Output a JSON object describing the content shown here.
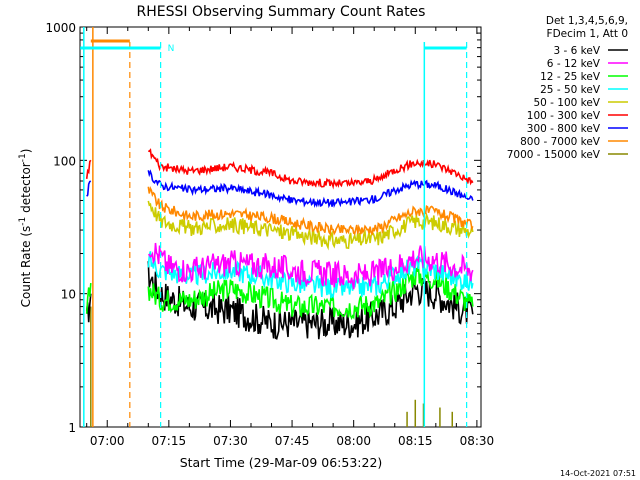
{
  "chart_data": {
    "type": "line",
    "title": "RHESSI Observing Summary Count Rates",
    "xlabel": "Start Time (29-Mar-09 06:53:22)",
    "ylabel": "Count Rate (s^-1 detector^-1)",
    "ylabel_parts": {
      "a": "Count Rate (s",
      "b": "-1",
      "c": " detector",
      "d": "-1",
      "e": ")"
    },
    "y_scale": "log",
    "ylim": [
      1,
      1000
    ],
    "y_ticks": [
      {
        "value": 1,
        "label": "1"
      },
      {
        "value": 10,
        "label": "10"
      },
      {
        "value": 100,
        "label": "100"
      },
      {
        "value": 1000,
        "label": "1000"
      }
    ],
    "xlim": [
      "06:53:22",
      "08:31:00"
    ],
    "x_ticks": [
      "07:00",
      "07:15",
      "07:30",
      "07:45",
      "08:00",
      "08:15",
      "08:30"
    ],
    "x_tick_minutes": [
      420,
      435,
      450,
      465,
      480,
      495,
      510
    ],
    "x_min_minutes": 413.37,
    "x_max_minutes": 511,
    "legend_position": "top-right",
    "legend_header": [
      "Det 1,3,4,5,6,9,",
      "FDecim 1, Att 0"
    ],
    "series": [
      {
        "name": "3 - 6 keV",
        "color": "#000000",
        "x": [
          "06:55",
          "06:56",
          "07:10",
          "07:13",
          "07:20",
          "07:30",
          "07:40",
          "07:45",
          "07:55",
          "08:00",
          "08:06",
          "08:10",
          "08:15",
          "08:20",
          "08:25",
          "08:29"
        ],
        "values": [
          6,
          10,
          14,
          10,
          8,
          7.5,
          6,
          6,
          6,
          6,
          7,
          8,
          11,
          10,
          8,
          7
        ]
      },
      {
        "name": "6 - 12 keV",
        "color": "#ff00ff",
        "x": [
          "07:10",
          "07:15",
          "07:20",
          "07:30",
          "07:40",
          "07:45",
          "07:55",
          "08:00",
          "08:05",
          "08:10",
          "08:15",
          "08:20",
          "08:25",
          "08:29"
        ],
        "values": [
          24,
          16,
          15,
          17,
          16,
          15,
          14,
          13.5,
          14,
          16,
          19,
          18,
          16,
          15
        ]
      },
      {
        "name": "12 - 25 keV",
        "color": "#00ff00",
        "x": [
          "06:55",
          "06:56",
          "07:10",
          "07:13",
          "07:20",
          "07:30",
          "07:40",
          "07:45",
          "07:55",
          "08:00",
          "08:06",
          "08:10",
          "08:15",
          "08:20",
          "08:25",
          "08:29"
        ],
        "values": [
          7,
          12,
          11,
          9,
          9,
          11,
          9,
          8,
          8,
          8,
          8.5,
          10.5,
          14,
          13,
          10,
          8
        ]
      },
      {
        "name": "25 - 50 keV",
        "color": "#00ffff",
        "x": [
          "07:10",
          "07:13",
          "07:20",
          "07:30",
          "07:40",
          "07:45",
          "07:55",
          "08:00",
          "08:06",
          "08:10",
          "08:15",
          "08:20",
          "08:25",
          "08:29"
        ],
        "values": [
          18,
          15,
          13.5,
          15,
          13,
          12,
          11,
          11,
          11.5,
          14,
          16,
          15,
          13,
          12
        ]
      },
      {
        "name": "50 - 100 keV",
        "color": "#cccc00",
        "x": [
          "07:10",
          "07:13",
          "07:20",
          "07:30",
          "07:40",
          "07:45",
          "07:55",
          "08:00",
          "08:06",
          "08:10",
          "08:15",
          "08:20",
          "08:25",
          "08:29"
        ],
        "values": [
          50,
          35,
          31,
          33,
          30,
          28,
          25,
          25,
          26,
          30,
          35,
          34,
          31,
          29
        ]
      },
      {
        "name": "100 - 300 keV",
        "color": "#ff0000",
        "x": [
          "06:55",
          "06:56",
          "07:10",
          "07:13",
          "07:20",
          "07:30",
          "07:40",
          "07:45",
          "07:55",
          "08:00",
          "08:06",
          "08:10",
          "08:15",
          "08:20",
          "08:25",
          "08:29"
        ],
        "values": [
          75,
          100,
          120,
          90,
          83,
          90,
          80,
          70,
          67,
          67,
          72,
          85,
          96,
          93,
          80,
          68
        ]
      },
      {
        "name": "300 - 800 keV",
        "color": "#0000ff",
        "x": [
          "06:55",
          "06:56",
          "07:10",
          "07:13",
          "07:20",
          "07:30",
          "07:40",
          "07:45",
          "07:55",
          "08:00",
          "08:06",
          "08:10",
          "08:15",
          "08:20",
          "08:25",
          "08:29"
        ],
        "values": [
          55,
          70,
          80,
          65,
          60,
          62,
          55,
          50,
          48,
          49,
          52,
          60,
          67,
          65,
          57,
          50
        ]
      },
      {
        "name": "800 - 7000 keV",
        "color": "#ff8800",
        "x": [
          "07:10",
          "07:13",
          "07:20",
          "07:30",
          "07:40",
          "07:45",
          "07:55",
          "08:00",
          "08:06",
          "08:10",
          "08:15",
          "08:20",
          "08:25",
          "08:29"
        ],
        "values": [
          60,
          45,
          38,
          40,
          37,
          34,
          30,
          30,
          31,
          36,
          42,
          41,
          36,
          32
        ]
      },
      {
        "name": "7000 - 15000 keV",
        "color": "#888800",
        "x": [
          "06:56",
          "08:13",
          "08:15",
          "08:17",
          "08:21",
          "08:24"
        ],
        "values": [
          8,
          1.3,
          1.6,
          1.5,
          1.4,
          1.3
        ]
      }
    ],
    "flag_label": "N",
    "date_stamp": "14-Oct-2021 07:51"
  }
}
